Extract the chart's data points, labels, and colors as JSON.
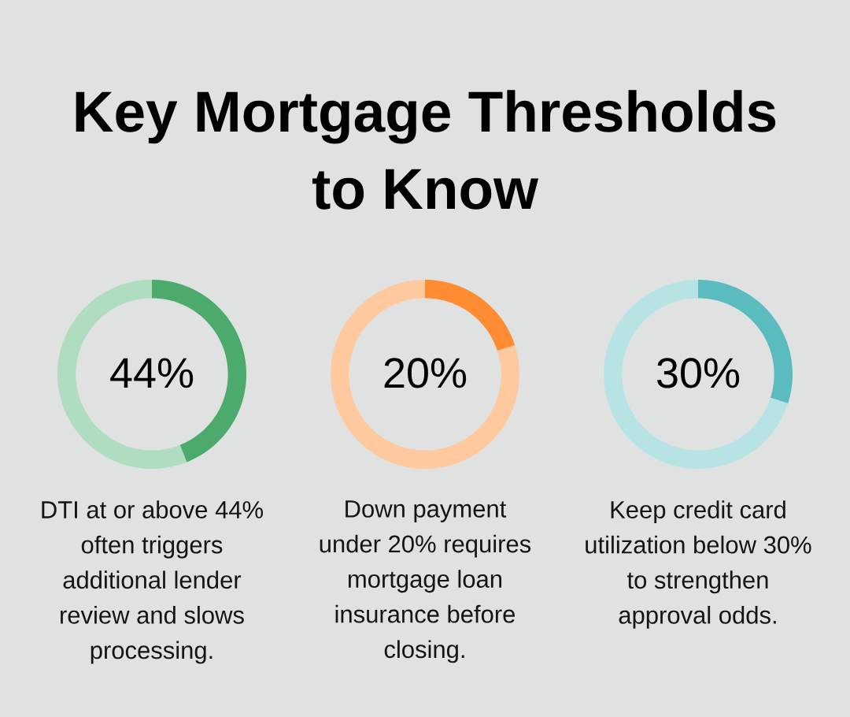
{
  "chart_data": [
    {
      "type": "donut",
      "title": "Key Mortgage Thresholds to Know",
      "categories": [
        null,
        null
      ],
      "values": [
        44,
        56
      ],
      "colors": [
        "#4caa6c",
        "#b0dcc0"
      ],
      "value_labels": [
        "44%",
        null
      ],
      "annotations": [
        "DTI at or above 44% often triggers additional lender review and slows processing."
      ]
    },
    {
      "type": "donut",
      "categories": [
        null,
        null
      ],
      "values": [
        20,
        80
      ],
      "colors": [
        "#ff8c33",
        "#ffc9a0"
      ],
      "value_labels": [
        "20%",
        null
      ],
      "annotations": [
        "Down payment under 20% requires mortgage loan insurance before closing."
      ]
    },
    {
      "type": "donut",
      "categories": [
        null,
        null
      ],
      "values": [
        30,
        70
      ],
      "colors": [
        "#5bbcc0",
        "#b8e3e4"
      ],
      "value_labels": [
        "30%",
        null
      ],
      "annotations": [
        "Keep credit card utilization below 30% to strengthen approval odds."
      ]
    }
  ]
}
